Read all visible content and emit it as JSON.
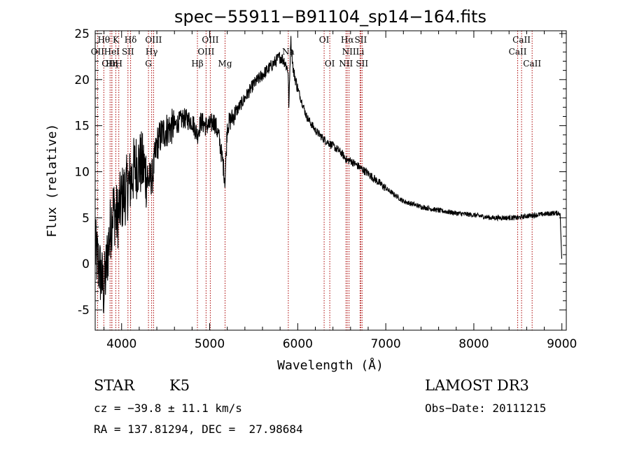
{
  "chart_data": {
    "type": "line",
    "title": "spec−55911−B91104_sp14−164.fits",
    "xlabel": "Wavelength (Å)",
    "ylabel": "Flux (relative)",
    "xlim": [
      3700,
      9050
    ],
    "ylim": [
      -7.2,
      25.3
    ],
    "xticks": [
      4000,
      5000,
      6000,
      7000,
      8000,
      9000
    ],
    "yticks": [
      -5,
      0,
      5,
      10,
      15,
      20,
      25
    ],
    "spectrum_anchors": {
      "x": [
        3700,
        3760,
        3800,
        3850,
        3900,
        3950,
        4000,
        4050,
        4100,
        4150,
        4200,
        4250,
        4300,
        4350,
        4400,
        4450,
        4500,
        4600,
        4700,
        4800,
        4860,
        4900,
        4950,
        5000,
        5050,
        5100,
        5150,
        5175,
        5200,
        5300,
        5400,
        5500,
        5600,
        5700,
        5800,
        5850,
        5890,
        5900,
        5920,
        5950,
        6000,
        6100,
        6200,
        6300,
        6400,
        6500,
        6562,
        6600,
        6700,
        6800,
        7000,
        7200,
        7400,
        7600,
        7800,
        8000,
        8200,
        8400,
        8500,
        8600,
        8700,
        8800,
        8900,
        8980,
        9000
      ],
      "y": [
        1.5,
        -1.0,
        -3.0,
        2.0,
        6.0,
        5.0,
        7.0,
        8.0,
        9.0,
        10.5,
        11.0,
        10.5,
        9.0,
        9.5,
        13.0,
        14.0,
        14.5,
        15.0,
        15.8,
        15.5,
        14.0,
        15.5,
        15.0,
        15.0,
        15.5,
        14.0,
        11.0,
        9.0,
        15.0,
        16.5,
        18.0,
        19.5,
        20.5,
        21.5,
        22.5,
        22.0,
        21.0,
        17.0,
        24.5,
        21.0,
        19.0,
        16.0,
        14.5,
        13.5,
        12.8,
        12.0,
        11.2,
        11.2,
        10.5,
        9.8,
        8.2,
        6.8,
        6.2,
        5.8,
        5.5,
        5.3,
        5.0,
        5.0,
        5.0,
        5.2,
        5.3,
        5.4,
        5.5,
        5.5,
        0.0
      ]
    },
    "spectral_lines": [
      {
        "label": "Hθ",
        "wavelength": 3798,
        "row": 1
      },
      {
        "label": "OII",
        "wavelength": 3727,
        "row": 2
      },
      {
        "label": "OIII",
        "wavelength": 3869,
        "row": 3
      },
      {
        "label": "K",
        "wavelength": 3934,
        "row": 1
      },
      {
        "label": "HeI",
        "wavelength": 3889,
        "row": 2
      },
      {
        "label": "Hη",
        "wavelength": 3889,
        "row": 3
      },
      {
        "label": "H",
        "wavelength": 3968,
        "row": 3
      },
      {
        "label": "Hδ",
        "wavelength": 4102,
        "row": 1
      },
      {
        "label": "SII",
        "wavelength": 4072,
        "row": 2
      },
      {
        "label": "OIII",
        "wavelength": 4363,
        "row": 1
      },
      {
        "label": "Hγ",
        "wavelength": 4341,
        "row": 2
      },
      {
        "label": "G",
        "wavelength": 4305,
        "row": 3
      },
      {
        "label": "OIII",
        "wavelength": 5007,
        "row": 1
      },
      {
        "label": "OIII",
        "wavelength": 4959,
        "row": 2
      },
      {
        "label": "Hβ",
        "wavelength": 4861,
        "row": 3
      },
      {
        "label": "Mg",
        "wavelength": 5175,
        "row": 3
      },
      {
        "label": "Na",
        "wavelength": 5893,
        "row": 2
      },
      {
        "label": "OI",
        "wavelength": 6300,
        "row": 1
      },
      {
        "label": "OI",
        "wavelength": 6364,
        "row": 3
      },
      {
        "label": "Hα",
        "wavelength": 6563,
        "row": 1
      },
      {
        "label": "SII",
        "wavelength": 6716,
        "row": 1
      },
      {
        "label": "NII",
        "wavelength": 6583,
        "row": 2
      },
      {
        "label": "Li",
        "wavelength": 6708,
        "row": 2
      },
      {
        "label": "NII",
        "wavelength": 6548,
        "row": 3
      },
      {
        "label": "SII",
        "wavelength": 6731,
        "row": 3
      },
      {
        "label": "CaII",
        "wavelength": 8542,
        "row": 1
      },
      {
        "label": "CaII",
        "wavelength": 8498,
        "row": 2
      },
      {
        "label": "CaII",
        "wavelength": 8662,
        "row": 3
      }
    ]
  },
  "info": {
    "object_class": "STAR",
    "subclass": "K5",
    "survey": "LAMOST DR3",
    "cz": "cz = −39.8 ± 11.1 km/s",
    "obs_date": "Obs−Date: 20111215",
    "coords": "RA = 137.81294, DEC =  27.98684"
  },
  "colors": {
    "spectrum": "#000000",
    "line_marker": "#aa0000",
    "axes": "#000000"
  }
}
